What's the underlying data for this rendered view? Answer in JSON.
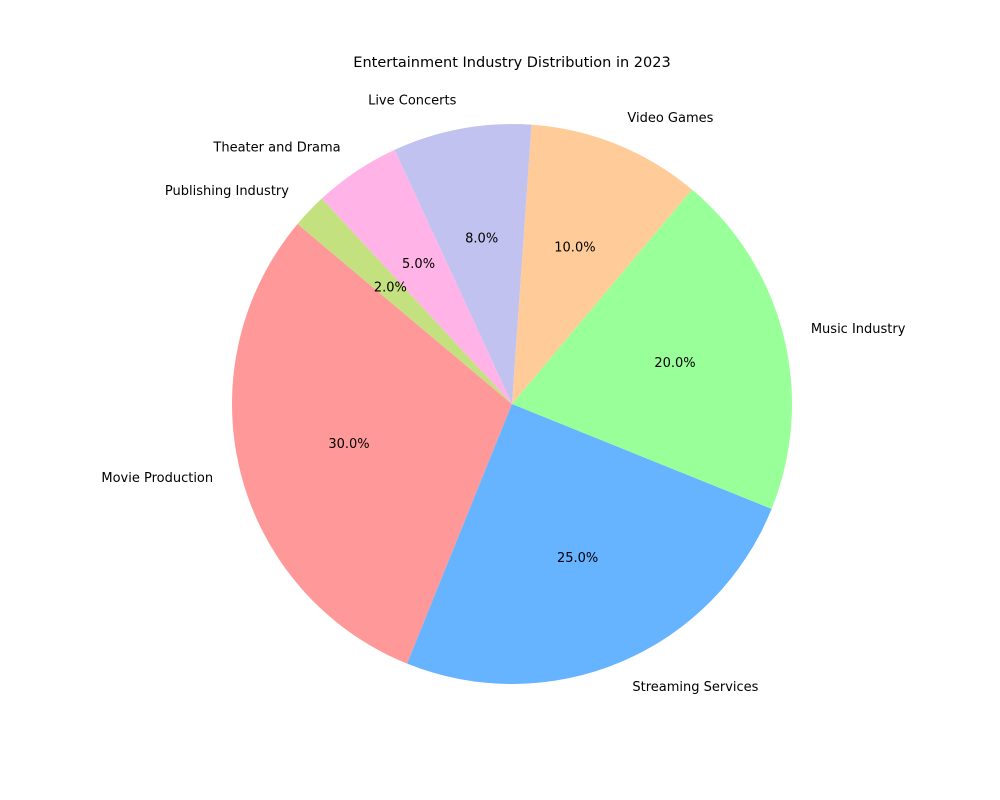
{
  "chart_data": {
    "type": "pie",
    "title": "Entertainment Industry Distribution in 2023",
    "categories": [
      "Movie Production",
      "Streaming Services",
      "Music Industry",
      "Video Games",
      "Live Concerts",
      "Theater and Drama",
      "Publishing Industry"
    ],
    "values": [
      30,
      25,
      20,
      10,
      8,
      5,
      2
    ],
    "value_labels": [
      "30.0%",
      "25.0%",
      "20.0%",
      "10.0%",
      "8.0%",
      "5.0%",
      "2.0%"
    ],
    "colors": [
      "#ff9999",
      "#66b3ff",
      "#99ff99",
      "#ffcc99",
      "#c2c2f0",
      "#ffb3e6",
      "#c4e17f"
    ],
    "start_angle_deg": 140,
    "direction": "counterclockwise",
    "legend": "none"
  }
}
